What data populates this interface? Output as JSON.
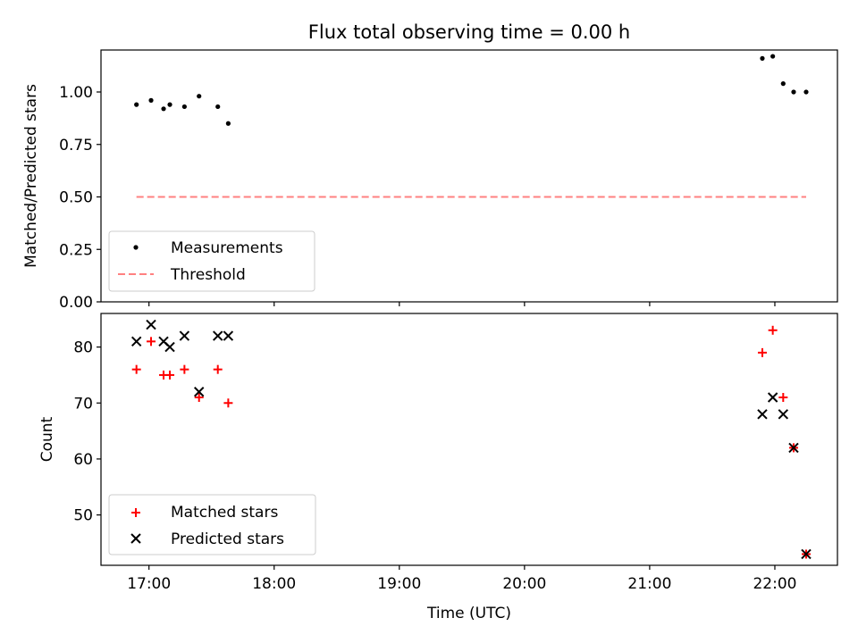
{
  "chart_data": [
    {
      "type": "scatter",
      "title": "Flux total observing time = 0.00 h",
      "ylabel": "Matched/Predicted stars",
      "xlabel": "",
      "xlim": [
        "16:37",
        "22:30"
      ],
      "ylim": [
        0,
        1.2
      ],
      "yticks": [
        "0.00",
        "0.25",
        "0.50",
        "0.75",
        "1.00"
      ],
      "ytick_values": [
        0,
        0.25,
        0.5,
        0.75,
        1.0
      ],
      "grid": false,
      "legend": "lower-left",
      "series": [
        {
          "name": "Measurements",
          "marker": "dot",
          "color": "#000000",
          "x": [
            "16:54",
            "17:01",
            "17:07",
            "17:10",
            "17:17",
            "17:24",
            "17:33",
            "17:38",
            "21:54",
            "21:59",
            "22:04",
            "22:09",
            "22:15"
          ],
          "y": [
            0.94,
            0.96,
            0.92,
            0.94,
            0.93,
            0.98,
            0.93,
            0.85,
            1.16,
            1.17,
            1.04,
            1.0,
            1.0
          ]
        },
        {
          "name": "Threshold",
          "marker": "dashed-line",
          "color": "#ff8080",
          "x": [
            "16:54",
            "22:15"
          ],
          "y": [
            0.5,
            0.5
          ]
        }
      ]
    },
    {
      "type": "scatter",
      "title": "",
      "ylabel": "Count",
      "xlabel": "Time (UTC)",
      "xlim": [
        "16:37",
        "22:30"
      ],
      "ylim": [
        41,
        86
      ],
      "yticks": [
        "50",
        "60",
        "70",
        "80"
      ],
      "ytick_values": [
        50,
        60,
        70,
        80
      ],
      "xticks": [
        "17:00",
        "18:00",
        "19:00",
        "20:00",
        "21:00",
        "22:00"
      ],
      "grid": false,
      "legend": "lower-left",
      "series": [
        {
          "name": "Matched stars",
          "marker": "plus",
          "color": "#ff0000",
          "x": [
            "16:54",
            "17:01",
            "17:07",
            "17:10",
            "17:17",
            "17:24",
            "17:33",
            "17:38",
            "21:54",
            "21:59",
            "22:04",
            "22:09",
            "22:15"
          ],
          "y": [
            76,
            81,
            75,
            75,
            76,
            71,
            76,
            70,
            79,
            83,
            71,
            62,
            43
          ]
        },
        {
          "name": "Predicted stars",
          "marker": "x",
          "color": "#000000",
          "x": [
            "16:54",
            "17:01",
            "17:07",
            "17:10",
            "17:17",
            "17:24",
            "17:33",
            "17:38",
            "21:54",
            "21:59",
            "22:04",
            "22:09",
            "22:15"
          ],
          "y": [
            81,
            84,
            81,
            80,
            82,
            72,
            82,
            82,
            68,
            71,
            68,
            62,
            43
          ]
        }
      ]
    }
  ]
}
